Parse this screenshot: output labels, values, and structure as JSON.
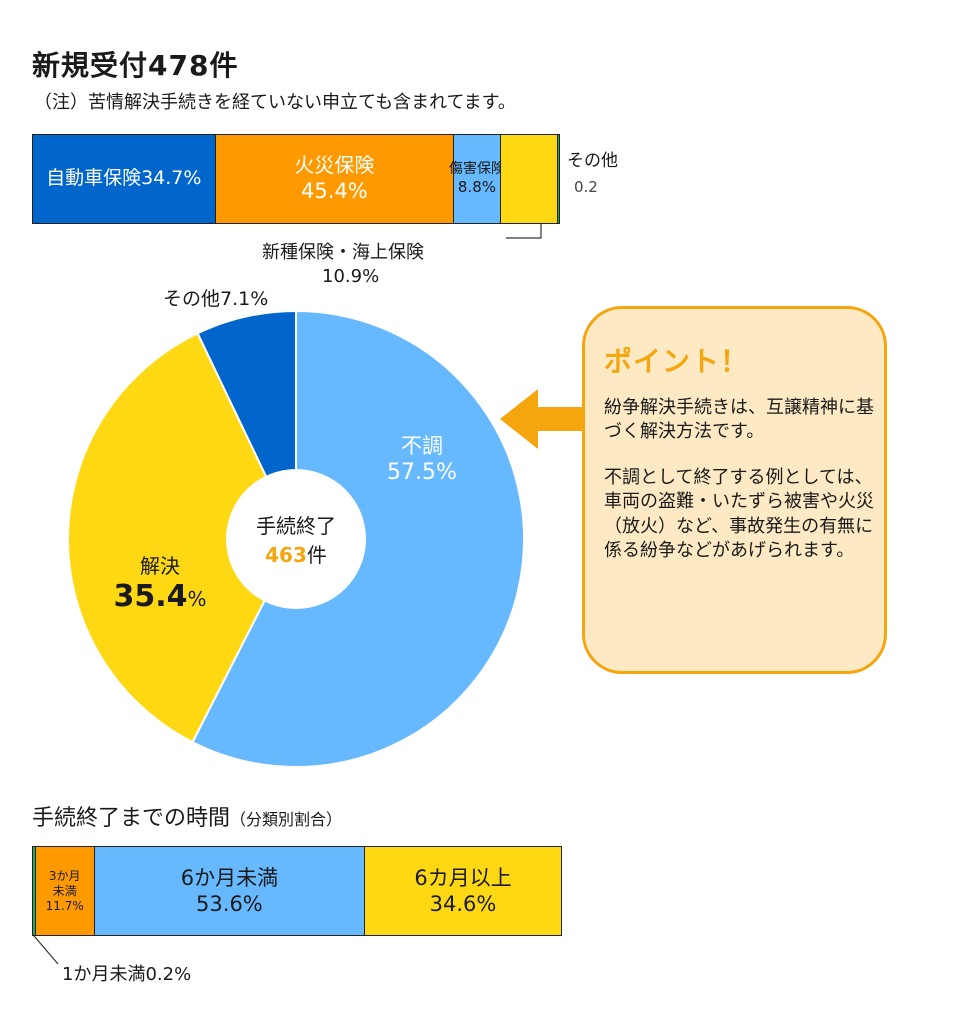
{
  "title": "新規受付478件",
  "note": "（注）苦情解決手続きを経ていない申立ても含まれてます。",
  "top_bar": {
    "segments": [
      {
        "label": "自動車保険34.7%",
        "color": "#0066cc"
      },
      {
        "label": "火災保険",
        "value_label": "45.4%",
        "color": "#ff9900"
      },
      {
        "label": "傷害保険",
        "value_label": "8.8%",
        "color": "#66b8ff"
      },
      {
        "label": "",
        "color": "#ffd814"
      },
      {
        "label": "",
        "color": "#22aa44"
      }
    ],
    "other_label": "その他",
    "other_value": "0.2",
    "shinshu_label": "新種保険・海上保険",
    "shinshu_value": "10.9%"
  },
  "pie": {
    "center_line1": "手続終了",
    "center_count": "463",
    "center_unit": "件",
    "fuchou_label": "不調",
    "fuchou_value": "57.5%",
    "kaiketsu_label": "解決",
    "kaiketsu_value": "35.4",
    "kaiketsu_unit": "%",
    "other_label": "その他7.1%"
  },
  "callout": {
    "title": "ポイント！",
    "para1": "紛争解決手続きは、互譲精神に基づく解決方法です。",
    "para2": "不調として終了する例としては、車両の盗難・いたずら被害や火災（放火）など、事故発生の有無に係る紛争などがあげられます。"
  },
  "section2": {
    "title": "手続終了までの時間",
    "subtitle": "（分類別割合）",
    "seg1_line1": "3か月",
    "seg1_line2": "未満",
    "seg1_line3": "11.7%",
    "seg2_line1": "6か月未満",
    "seg2_line2": "53.6%",
    "seg3_line1": "6カ月以上",
    "seg3_line2": "34.6%",
    "footnote": "1か月未満0.2%"
  },
  "colors": {
    "dark_blue": "#0066cc",
    "orange": "#ff9900",
    "light_blue": "#66b8ff",
    "yellow": "#ffd814",
    "green": "#22aa44",
    "accent_orange": "#f5a50e"
  },
  "chart_data": [
    {
      "type": "bar",
      "orientation": "horizontal-stacked",
      "title": "新規受付478件",
      "categories": [
        "自動車保険",
        "火災保険",
        "傷害保険",
        "新種保険・海上保険",
        "その他"
      ],
      "values": [
        34.7,
        45.4,
        8.8,
        10.9,
        0.2
      ]
    },
    {
      "type": "pie",
      "donut": true,
      "title": "手続終了463件",
      "categories": [
        "不調",
        "解決",
        "その他"
      ],
      "values": [
        57.5,
        35.4,
        7.1
      ]
    },
    {
      "type": "bar",
      "orientation": "horizontal-stacked",
      "title": "手続終了までの時間（分類別割合）",
      "categories": [
        "1か月未満",
        "3か月未満",
        "6か月未満",
        "6カ月以上"
      ],
      "values": [
        0.2,
        11.7,
        53.6,
        34.6
      ]
    }
  ]
}
